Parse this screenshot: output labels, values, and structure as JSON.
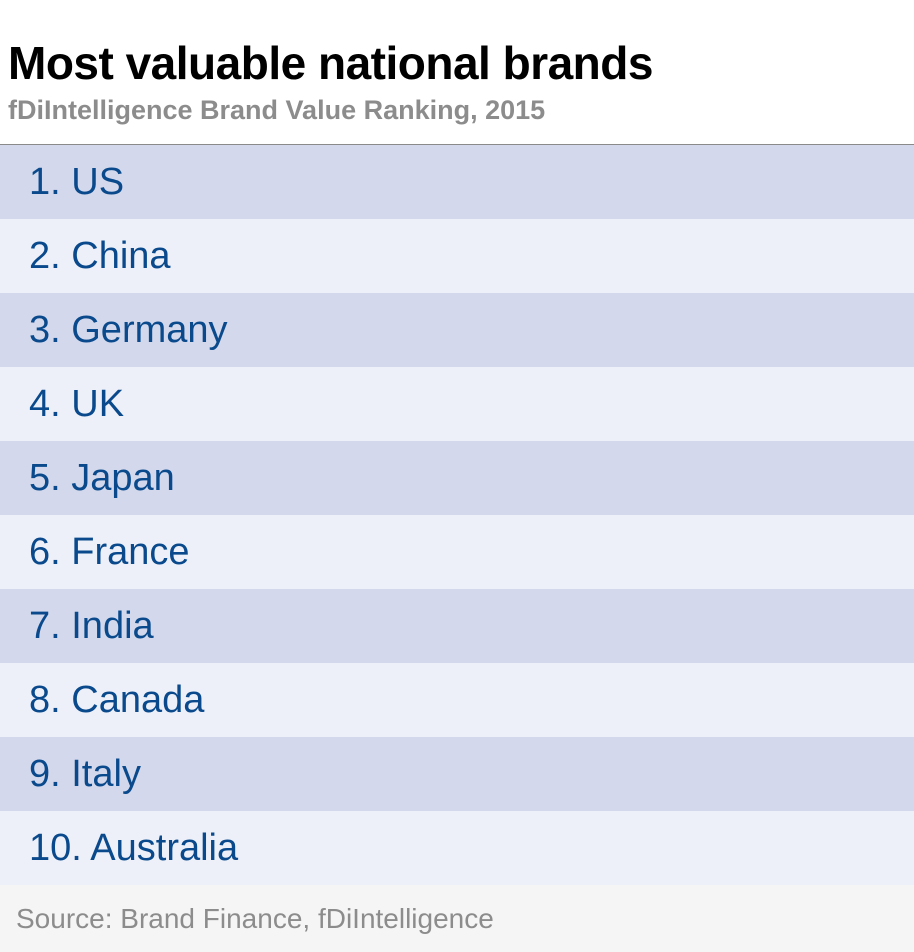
{
  "title": "Most valuable national brands",
  "subtitle": "fDiIntelligence Brand Value Ranking, 2015",
  "source": "Source: Brand Finance, fDiIntelligence",
  "colors": {
    "title": "#000000",
    "subtitle": "#8c8c8c",
    "row_text": "#0a4a8c",
    "row_odd_bg": "#d3d8ec",
    "row_even_bg": "#eef0f9"
  },
  "chart_data": {
    "type": "table",
    "title": "Most valuable national brands",
    "subtitle": "fDiIntelligence Brand Value Ranking, 2015",
    "rows": [
      "1. US",
      "2. China",
      "3. Germany",
      "4. UK",
      "5. Japan",
      "6. France",
      "7. India",
      "8. Canada",
      "9. Italy",
      "10. Australia"
    ]
  }
}
